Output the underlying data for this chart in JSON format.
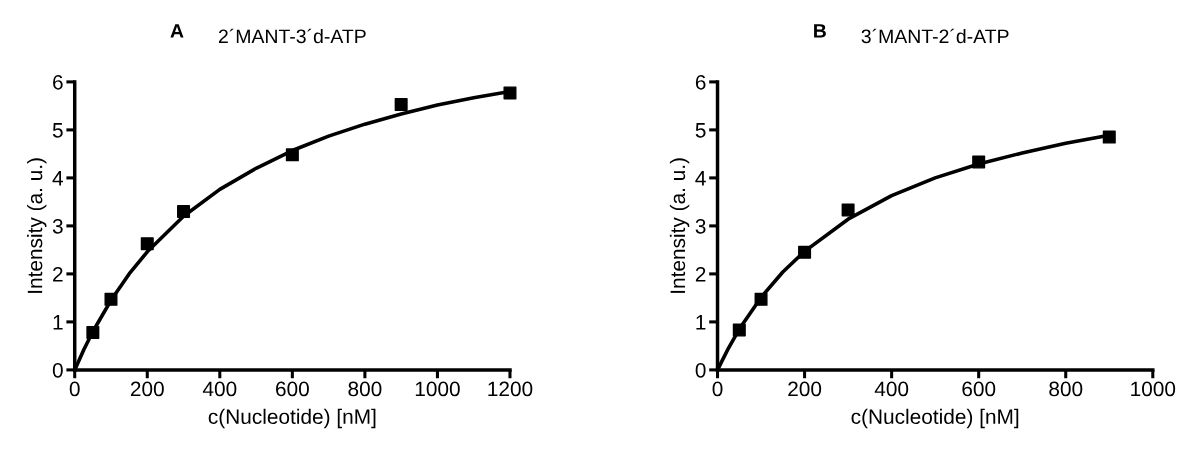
{
  "chart_data": [
    {
      "type": "scatter",
      "title": "2´MANT-3´d-ATP",
      "annotations": [
        "A"
      ],
      "xlabel": "c(Nucleotide) [nM]",
      "ylabel": "Intensity (a. u.)",
      "xlim": [
        0,
        1200
      ],
      "xticks": [
        0,
        200,
        400,
        600,
        800,
        1000,
        1200
      ],
      "ylim": [
        0,
        6
      ],
      "yticks": [
        0,
        1,
        2,
        3,
        4,
        5,
        6
      ],
      "grid": false,
      "legend": false,
      "series": [
        {
          "marker": "square",
          "color": "#000000",
          "x": [
            50,
            100,
            200,
            300,
            600,
            900,
            1200
          ],
          "values": [
            0.78,
            1.47,
            2.63,
            3.3,
            4.48,
            5.53,
            5.77
          ]
        },
        {
          "type": "line",
          "marker": "none",
          "line_style": "solid",
          "color": "#000000",
          "x": [
            0,
            25,
            50,
            100,
            150,
            200,
            300,
            400,
            500,
            600,
            700,
            800,
            900,
            1000,
            1100,
            1200
          ],
          "values": [
            0,
            0.42,
            0.8,
            1.45,
            2.0,
            2.46,
            3.2,
            3.76,
            4.2,
            4.57,
            4.87,
            5.12,
            5.33,
            5.52,
            5.67,
            5.8
          ]
        }
      ]
    },
    {
      "type": "scatter",
      "title": "3´MANT-2´d-ATP",
      "annotations": [
        "B"
      ],
      "xlabel": "c(Nucleotide) [nM]",
      "ylabel": "Intensity (a. u.)",
      "xlim": [
        0,
        1000
      ],
      "xticks": [
        0,
        200,
        400,
        600,
        800,
        1000
      ],
      "ylim": [
        0,
        6
      ],
      "yticks": [
        0,
        1,
        2,
        3,
        4,
        5,
        6
      ],
      "grid": false,
      "legend": false,
      "series": [
        {
          "marker": "square",
          "color": "#000000",
          "x": [
            50,
            100,
            200,
            300,
            600,
            900
          ],
          "values": [
            0.83,
            1.47,
            2.45,
            3.33,
            4.33,
            4.85
          ]
        },
        {
          "type": "line",
          "marker": "none",
          "line_style": "solid",
          "color": "#000000",
          "x": [
            0,
            25,
            50,
            100,
            150,
            200,
            300,
            400,
            500,
            600,
            700,
            800,
            900
          ],
          "values": [
            0,
            0.45,
            0.85,
            1.51,
            2.04,
            2.47,
            3.14,
            3.63,
            4.0,
            4.29,
            4.52,
            4.72,
            4.89
          ]
        }
      ]
    }
  ]
}
